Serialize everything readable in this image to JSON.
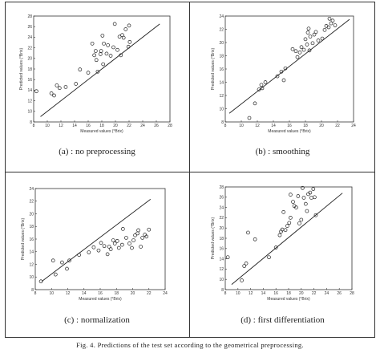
{
  "figure_caption": "Fig. 4.   Predictions of the test set according to the geometrical preprocessing.",
  "chart_data": [
    {
      "type": "scatter",
      "caption": "(a) : no preprocessing",
      "xlabel": "Measured values (°Brix)",
      "ylabel": "Predicted values (°Brix)",
      "xlim": [
        8,
        28
      ],
      "ylim": [
        8,
        28
      ],
      "xticks": [
        8,
        10,
        12,
        14,
        16,
        18,
        20,
        22,
        24,
        26,
        28
      ],
      "yticks": [
        8,
        10,
        12,
        14,
        16,
        18,
        20,
        22,
        24,
        26,
        28
      ],
      "line": [
        [
          9,
          9
        ],
        [
          26.5,
          26.5
        ]
      ],
      "points": [
        [
          8.4,
          13.8
        ],
        [
          10.6,
          13.4
        ],
        [
          11.0,
          13.0
        ],
        [
          11.4,
          14.9
        ],
        [
          11.8,
          14.4
        ],
        [
          12.7,
          14.6
        ],
        [
          14.2,
          15.2
        ],
        [
          14.8,
          17.9
        ],
        [
          16.0,
          17.3
        ],
        [
          16.6,
          22.8
        ],
        [
          16.9,
          20.6
        ],
        [
          17.1,
          21.4
        ],
        [
          17.2,
          19.7
        ],
        [
          17.4,
          17.5
        ],
        [
          17.8,
          20.8
        ],
        [
          17.9,
          21.4
        ],
        [
          18.2,
          18.9
        ],
        [
          18.1,
          24.3
        ],
        [
          18.3,
          22.8
        ],
        [
          18.7,
          20.9
        ],
        [
          18.9,
          22.5
        ],
        [
          19.3,
          20.5
        ],
        [
          19.7,
          22.1
        ],
        [
          19.9,
          26.5
        ],
        [
          20.3,
          21.6
        ],
        [
          20.6,
          24.1
        ],
        [
          20.8,
          20.6
        ],
        [
          21.0,
          24.4
        ],
        [
          21.2,
          23.9
        ],
        [
          21.5,
          25.5
        ],
        [
          22.0,
          26.2
        ],
        [
          21.9,
          22.2
        ],
        [
          22.1,
          23.1
        ]
      ]
    },
    {
      "type": "scatter",
      "caption": "(b) : smoothing",
      "xlabel": "Measured values (°Brix)",
      "ylabel": "Predicted values (°Brix)",
      "xlim": [
        8,
        24
      ],
      "ylim": [
        8,
        24
      ],
      "xticks": [
        8,
        10,
        12,
        14,
        16,
        18,
        20,
        22,
        24
      ],
      "yticks": [
        8,
        10,
        12,
        14,
        16,
        18,
        20,
        22,
        24
      ],
      "line": [
        [
          8.5,
          9.3
        ],
        [
          23.5,
          23.5
        ]
      ],
      "points": [
        [
          11.0,
          8.6
        ],
        [
          11.7,
          10.8
        ],
        [
          12.2,
          12.9
        ],
        [
          12.5,
          13.6
        ],
        [
          12.6,
          13.1
        ],
        [
          13.0,
          14.0
        ],
        [
          14.5,
          14.9
        ],
        [
          15.0,
          15.6
        ],
        [
          15.3,
          14.3
        ],
        [
          15.5,
          16.1
        ],
        [
          16.4,
          19.0
        ],
        [
          16.8,
          18.7
        ],
        [
          17.0,
          17.8
        ],
        [
          17.3,
          18.5
        ],
        [
          17.5,
          19.3
        ],
        [
          17.8,
          18.9
        ],
        [
          18.0,
          20.5
        ],
        [
          18.2,
          19.7
        ],
        [
          18.5,
          18.8
        ],
        [
          18.6,
          20.9
        ],
        [
          18.9,
          19.9
        ],
        [
          19.1,
          21.2
        ],
        [
          19.3,
          21.6
        ],
        [
          19.6,
          20.3
        ],
        [
          20.1,
          20.6
        ],
        [
          20.4,
          21.9
        ],
        [
          20.6,
          22.5
        ],
        [
          20.9,
          22.3
        ],
        [
          21.2,
          22.9
        ],
        [
          21.4,
          23.3
        ],
        [
          21.7,
          22.6
        ],
        [
          18.3,
          21.5
        ],
        [
          18.4,
          22.1
        ],
        [
          21.0,
          23.6
        ]
      ]
    },
    {
      "type": "scatter",
      "caption": "(c) : normalization",
      "xlabel": "Measured values (°Brix)",
      "ylabel": "Predicted values (°Brix)",
      "xlim": [
        8,
        24
      ],
      "ylim": [
        8,
        24
      ],
      "xticks": [
        8,
        10,
        12,
        14,
        16,
        18,
        20,
        22,
        24
      ],
      "yticks": [
        8,
        10,
        12,
        14,
        16,
        18,
        20,
        22,
        24
      ],
      "line": [
        [
          8.8,
          9.3
        ],
        [
          22.2,
          22.3
        ]
      ],
      "points": [
        [
          8.7,
          9.3
        ],
        [
          10.2,
          12.6
        ],
        [
          10.5,
          10.4
        ],
        [
          11.3,
          12.3
        ],
        [
          11.9,
          11.3
        ],
        [
          12.2,
          12.6
        ],
        [
          13.4,
          13.5
        ],
        [
          14.6,
          13.9
        ],
        [
          15.2,
          14.7
        ],
        [
          15.8,
          14.2
        ],
        [
          16.1,
          15.4
        ],
        [
          16.5,
          14.9
        ],
        [
          16.9,
          13.6
        ],
        [
          17.1,
          14.8
        ],
        [
          17.3,
          14.4
        ],
        [
          17.6,
          15.8
        ],
        [
          17.8,
          15.3
        ],
        [
          18.1,
          15.7
        ],
        [
          18.3,
          14.6
        ],
        [
          18.7,
          15.1
        ],
        [
          18.8,
          17.6
        ],
        [
          19.2,
          16.2
        ],
        [
          19.6,
          15.3
        ],
        [
          20.1,
          15.8
        ],
        [
          20.3,
          16.6
        ],
        [
          20.6,
          16.9
        ],
        [
          21.0,
          14.8
        ],
        [
          21.2,
          16.2
        ],
        [
          21.5,
          16.7
        ],
        [
          22.0,
          17.5
        ],
        [
          20.7,
          17.4
        ],
        [
          19.9,
          14.6
        ],
        [
          21.7,
          16.4
        ]
      ]
    },
    {
      "type": "scatter",
      "caption": "(d) : first differentiation",
      "xlabel": "Measured values (°Brix)",
      "ylabel": "Predicted values (°Brix)",
      "xlim": [
        8,
        28
      ],
      "ylim": [
        8,
        28
      ],
      "xticks": [
        8,
        10,
        12,
        14,
        16,
        18,
        20,
        22,
        24,
        26,
        28
      ],
      "yticks": [
        8,
        10,
        12,
        14,
        16,
        18,
        20,
        22,
        24,
        26,
        28
      ],
      "line": [
        [
          9,
          9
        ],
        [
          26.5,
          26.8
        ]
      ],
      "points": [
        [
          8.4,
          14.3
        ],
        [
          10.6,
          9.8
        ],
        [
          11.0,
          12.6
        ],
        [
          11.3,
          13.1
        ],
        [
          11.6,
          19.1
        ],
        [
          12.7,
          17.8
        ],
        [
          14.9,
          14.3
        ],
        [
          16.0,
          16.2
        ],
        [
          16.6,
          18.6
        ],
        [
          16.8,
          19.3
        ],
        [
          17.0,
          19.7
        ],
        [
          17.2,
          23.1
        ],
        [
          17.5,
          19.6
        ],
        [
          17.8,
          20.4
        ],
        [
          18.1,
          21.0
        ],
        [
          18.3,
          22.0
        ],
        [
          18.7,
          25.1
        ],
        [
          18.9,
          24.3
        ],
        [
          19.2,
          24.0
        ],
        [
          19.5,
          26.2
        ],
        [
          19.7,
          20.9
        ],
        [
          20.2,
          27.8
        ],
        [
          20.4,
          25.9
        ],
        [
          20.7,
          24.7
        ],
        [
          20.9,
          23.3
        ],
        [
          21.1,
          26.6
        ],
        [
          21.4,
          26.9
        ],
        [
          21.6,
          25.9
        ],
        [
          22.1,
          26.0
        ],
        [
          22.3,
          22.5
        ],
        [
          21.9,
          27.6
        ],
        [
          18.3,
          26.5
        ],
        [
          20.0,
          21.6
        ]
      ]
    }
  ]
}
